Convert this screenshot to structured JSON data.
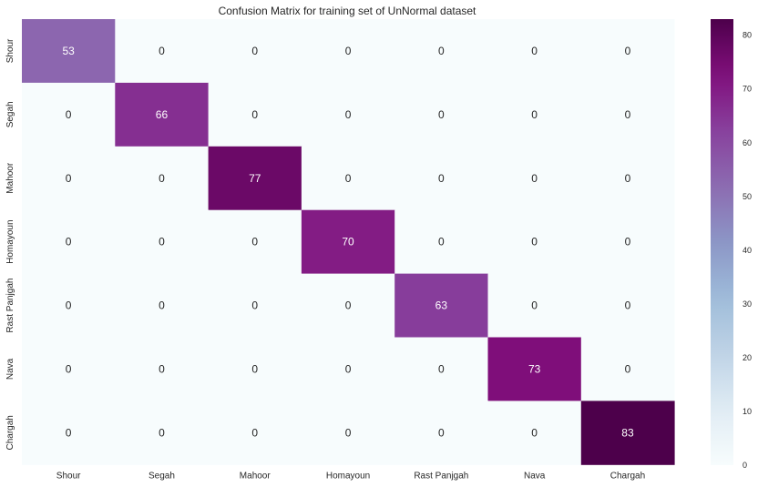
{
  "chart_data": {
    "type": "heatmap",
    "title": "Confusion Matrix for training set of UnNormal dataset",
    "x_categories": [
      "Shour",
      "Segah",
      "Mahoor",
      "Homayoun",
      "Rast Panjgah",
      "Nava",
      "Chargah"
    ],
    "y_categories": [
      "Shour",
      "Segah",
      "Mahoor",
      "Homayoun",
      "Rast Panjgah",
      "Nava",
      "Chargah"
    ],
    "matrix": [
      [
        53,
        0,
        0,
        0,
        0,
        0,
        0
      ],
      [
        0,
        66,
        0,
        0,
        0,
        0,
        0
      ],
      [
        0,
        0,
        77,
        0,
        0,
        0,
        0
      ],
      [
        0,
        0,
        0,
        70,
        0,
        0,
        0
      ],
      [
        0,
        0,
        0,
        0,
        63,
        0,
        0
      ],
      [
        0,
        0,
        0,
        0,
        0,
        73,
        0
      ],
      [
        0,
        0,
        0,
        0,
        0,
        0,
        83
      ]
    ],
    "colormap": "BuPu",
    "colorbar": {
      "range": [
        0,
        83
      ],
      "ticks": [
        0,
        10,
        20,
        30,
        40,
        50,
        60,
        70,
        80
      ]
    },
    "annotations": true
  }
}
